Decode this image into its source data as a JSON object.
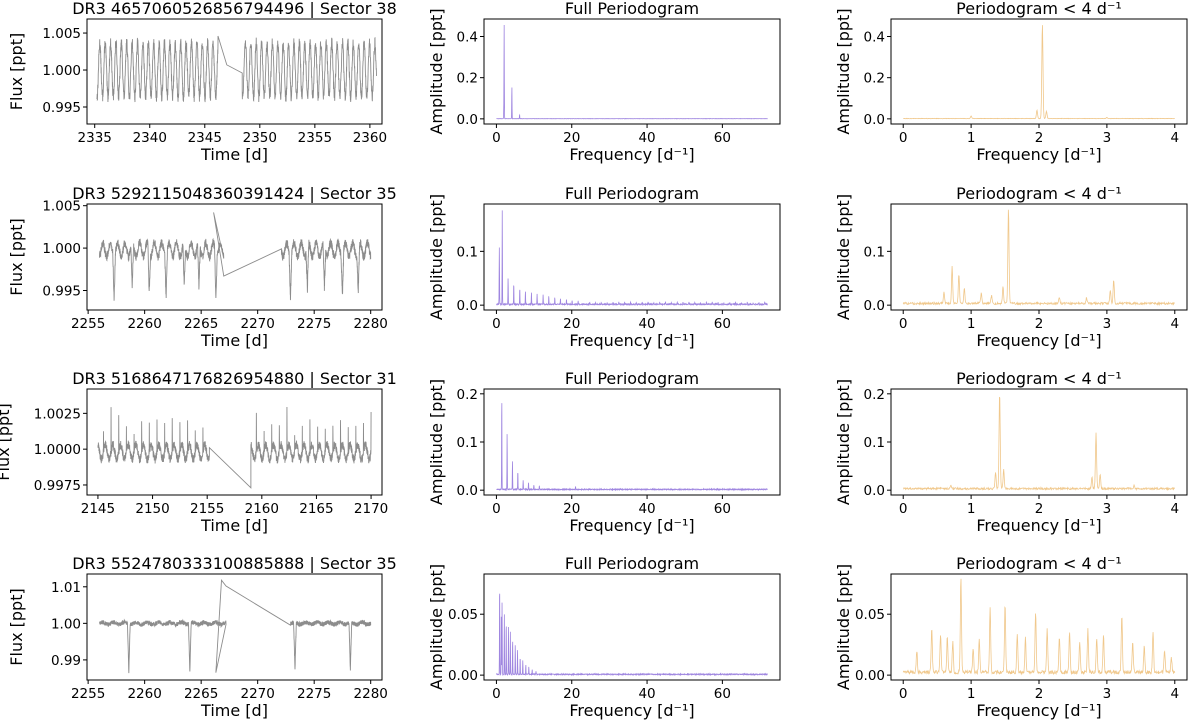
{
  "figure": {
    "rows": [
      {
        "lc_title": "DR3 4657060526856794496 | Sector 38",
        "full_title": "Full Periodogram",
        "zoom_title": "Periodogram < 4 d⁻¹"
      },
      {
        "lc_title": "DR3 5292115048360391424 | Sector 35",
        "full_title": "Full Periodogram",
        "zoom_title": "Periodogram < 4 d⁻¹"
      },
      {
        "lc_title": "DR3 5168647176826954880 | Sector 31",
        "full_title": "Full Periodogram",
        "zoom_title": "Periodogram < 4 d⁻¹"
      },
      {
        "lc_title": "DR3 5524780333100885888 | Sector 35",
        "full_title": "Full Periodogram",
        "zoom_title": "Periodogram < 4 d⁻¹"
      }
    ],
    "lc_xlabel": "Time [d]",
    "lc_ylabel": "Flux [ppt]",
    "pg_xlabel": "Frequency [d⁻¹]",
    "pg_ylabel": "Amplitude [ppt]"
  },
  "colors": {
    "light_curve": "#8c8c8c",
    "full_periodogram": "#9f86e0",
    "zoom_periodogram": "#f0c88c",
    "axes": "#000000"
  },
  "chart_data": [
    {
      "type": "line",
      "panel": "light curve",
      "row": 1,
      "title": "DR3 4657060526856794496 | Sector 38",
      "xlabel": "Time [d]",
      "ylabel": "Flux [ppt]",
      "xlim": [
        2334.3,
        2361.1
      ],
      "ylim": [
        0.9927,
        1.0069
      ],
      "xticks": [
        2335,
        2340,
        2345,
        2350,
        2355,
        2360
      ],
      "yticks": [
        0.995,
        1.0,
        1.005
      ],
      "ytick_labels": [
        "0.995",
        "1.000",
        "1.005"
      ],
      "segments": [
        [
          2335.2,
          2346.2
        ],
        [
          2348.4,
          2360.6
        ]
      ],
      "baseline": 1.0,
      "amplitude": 0.0036,
      "noise": 0.0008,
      "period_d": 0.49,
      "dip_depth": 0.0,
      "dip_times": [],
      "gap_points": [
        [
          2346.2,
          1.0046
        ],
        [
          2347.0,
          1.0007
        ],
        [
          2348.4,
          0.9996
        ]
      ]
    },
    {
      "type": "line",
      "panel": "full periodogram",
      "row": 1,
      "title": "Full Periodogram",
      "xlabel": "Frequency [d⁻¹]",
      "ylabel": "Amplitude [ppt]",
      "xlim": [
        -3.3,
        75.3
      ],
      "ylim": [
        -0.025,
        0.485
      ],
      "xticks": [
        0,
        20,
        40,
        60
      ],
      "yticks": [
        0.0,
        0.2,
        0.4
      ],
      "ytick_labels": [
        "0.0",
        "0.2",
        "0.4"
      ],
      "x_max": 72,
      "peaks": [
        [
          2.05,
          0.46
        ],
        [
          4.1,
          0.16
        ],
        [
          1.95,
          0.04
        ],
        [
          6.15,
          0.02
        ]
      ],
      "floor": 0.001
    },
    {
      "type": "line",
      "panel": "periodogram < 4",
      "row": 1,
      "title": "Periodogram < 4 d⁻¹",
      "xlabel": "Frequency [d⁻¹]",
      "ylabel": "Amplitude [ppt]",
      "xlim": [
        -0.18,
        4.18
      ],
      "ylim": [
        -0.025,
        0.485
      ],
      "xticks": [
        0,
        1,
        2,
        3,
        4
      ],
      "yticks": [
        0.0,
        0.2,
        0.4
      ],
      "ytick_labels": [
        "0.0",
        "0.2",
        "0.4"
      ],
      "x_max": 4,
      "peaks": [
        [
          2.05,
          0.46
        ],
        [
          1.97,
          0.04
        ],
        [
          2.11,
          0.035
        ],
        [
          1.0,
          0.012
        ],
        [
          3.0,
          0.006
        ]
      ],
      "floor": 0.002
    },
    {
      "type": "line",
      "panel": "light curve",
      "row": 2,
      "title": "DR3 5292115048360391424 | Sector 35",
      "xlabel": "Time [d]",
      "ylabel": "Flux [ppt]",
      "xlim": [
        2254.9,
        2281.0
      ],
      "ylim": [
        0.9927,
        1.0052
      ],
      "xticks": [
        2255,
        2260,
        2265,
        2270,
        2275,
        2280
      ],
      "yticks": [
        0.995,
        1.0,
        1.005
      ],
      "ytick_labels": [
        "0.995",
        "1.000",
        "1.005"
      ],
      "segments": [
        [
          2256.0,
          2267.0
        ],
        [
          2272.1,
          2280.0
        ]
      ],
      "baseline": 0.9998,
      "amplitude": 0.0008,
      "noise": 0.0005,
      "period_d": 0.65,
      "dip_depth": 0.005,
      "dip_times": [
        2257.3,
        2258.9,
        2260.4,
        2261.9,
        2263.5,
        2264.8,
        2266.3,
        2272.9,
        2274.4,
        2275.9,
        2277.5,
        2278.9
      ],
      "gap_points": [
        [
          2266.1,
          1.0042
        ],
        [
          2267.0,
          0.9967
        ],
        [
          2272.1,
          0.9999
        ]
      ]
    },
    {
      "type": "line",
      "panel": "full periodogram",
      "row": 2,
      "title": "Full Periodogram",
      "xlabel": "Frequency [d⁻¹]",
      "ylabel": "Amplitude [ppt]",
      "xlim": [
        -3.3,
        75.3
      ],
      "ylim": [
        -0.009,
        0.188
      ],
      "xticks": [
        0,
        20,
        40,
        60
      ],
      "yticks": [
        0.0,
        0.1
      ],
      "ytick_labels": [
        "0.0",
        "0.1"
      ],
      "x_max": 72,
      "peaks": [
        [
          1.55,
          0.178
        ],
        [
          0.75,
          0.07
        ],
        [
          0.8,
          0.055
        ],
        [
          3.1,
          0.05
        ],
        [
          4.6,
          0.04
        ],
        [
          6.2,
          0.03
        ],
        [
          7.7,
          0.025
        ],
        [
          9.3,
          0.022
        ],
        [
          10.8,
          0.02
        ],
        [
          12.4,
          0.018
        ],
        [
          13.9,
          0.016
        ],
        [
          15.5,
          0.013
        ],
        [
          17.0,
          0.011
        ],
        [
          18.6,
          0.009
        ],
        [
          20.1,
          0.007
        ],
        [
          21.7,
          0.006
        ]
      ],
      "comb": {
        "spacing": 1.55,
        "start": 23.2,
        "end": 71.5,
        "height": 0.004
      },
      "floor": 0.002
    },
    {
      "type": "line",
      "panel": "periodogram < 4",
      "row": 2,
      "title": "Periodogram < 4 d⁻¹",
      "xlabel": "Frequency [d⁻¹]",
      "ylabel": "Amplitude [ppt]",
      "xlim": [
        -0.18,
        4.18
      ],
      "ylim": [
        -0.009,
        0.188
      ],
      "xticks": [
        0,
        1,
        2,
        3,
        4
      ],
      "yticks": [
        0.0,
        0.1
      ],
      "ytick_labels": [
        "0.0",
        "0.1"
      ],
      "x_max": 4,
      "peaks": [
        [
          1.55,
          0.178
        ],
        [
          0.72,
          0.068
        ],
        [
          0.82,
          0.055
        ],
        [
          0.9,
          0.03
        ],
        [
          3.1,
          0.045
        ],
        [
          3.05,
          0.025
        ],
        [
          1.47,
          0.03
        ],
        [
          0.6,
          0.02
        ],
        [
          1.15,
          0.02
        ],
        [
          1.3,
          0.015
        ],
        [
          2.3,
          0.012
        ],
        [
          2.7,
          0.01
        ]
      ],
      "floor": 0.004
    },
    {
      "type": "line",
      "panel": "light curve",
      "row": 3,
      "title": "DR3 5168647176826954880 | Sector 31",
      "xlabel": "Time [d]",
      "ylabel": "Flux [ppt]",
      "xlim": [
        2144.0,
        2171.0
      ],
      "ylim": [
        0.9968,
        1.0042
      ],
      "xticks": [
        2145,
        2150,
        2155,
        2160,
        2165,
        2170
      ],
      "yticks": [
        0.9975,
        1.0,
        1.0025
      ],
      "ytick_labels": [
        "0.9975",
        "1.0000",
        "1.0025"
      ],
      "segments": [
        [
          2145.0,
          2155.2
        ],
        [
          2159.0,
          2170.0
        ]
      ],
      "baseline": 0.9998,
      "amplitude": 0.0005,
      "noise": 0.0003,
      "period_d": 0.7,
      "dip_depth": 0.0,
      "dip_times": [],
      "spike_period": 0.7,
      "spike_height": 0.0032,
      "gap_points": [
        [
          2155.2,
          1.0001
        ],
        [
          2159.0,
          0.9973
        ]
      ]
    },
    {
      "type": "line",
      "panel": "full periodogram",
      "row": 3,
      "title": "Full Periodogram",
      "xlabel": "Frequency [d⁻¹]",
      "ylabel": "Amplitude [ppt]",
      "xlim": [
        -3.3,
        75.3
      ],
      "ylim": [
        -0.01,
        0.21
      ],
      "xticks": [
        0,
        20,
        40,
        60
      ],
      "yticks": [
        0.0,
        0.1,
        0.2
      ],
      "ytick_labels": [
        "0.0",
        "0.1",
        "0.2"
      ],
      "x_max": 72,
      "peaks": [
        [
          1.42,
          0.2
        ],
        [
          2.84,
          0.12
        ],
        [
          4.26,
          0.06
        ],
        [
          5.68,
          0.04
        ],
        [
          7.1,
          0.02
        ],
        [
          8.52,
          0.015
        ],
        [
          9.94,
          0.01
        ],
        [
          11.4,
          0.008
        ],
        [
          21.0,
          0.006
        ]
      ],
      "floor": 0.002
    },
    {
      "type": "line",
      "panel": "periodogram < 4",
      "row": 3,
      "title": "Periodogram < 4 d⁻¹",
      "xlabel": "Frequency [d⁻¹]",
      "ylabel": "Amplitude [ppt]",
      "xlim": [
        -0.18,
        4.18
      ],
      "ylim": [
        -0.01,
        0.21
      ],
      "xticks": [
        0,
        1,
        2,
        3,
        4
      ],
      "yticks": [
        0.0,
        0.1,
        0.2
      ],
      "ytick_labels": [
        "0.0",
        "0.1",
        "0.2"
      ],
      "x_max": 4,
      "peaks": [
        [
          1.42,
          0.2
        ],
        [
          1.48,
          0.04
        ],
        [
          1.36,
          0.035
        ],
        [
          2.84,
          0.115
        ],
        [
          2.9,
          0.03
        ],
        [
          2.78,
          0.025
        ],
        [
          0.7,
          0.008
        ],
        [
          3.4,
          0.006
        ]
      ],
      "floor": 0.004
    },
    {
      "type": "line",
      "panel": "light curve",
      "row": 4,
      "title": "DR3 5524780333100885888 | Sector 35",
      "xlabel": "Time [d]",
      "ylabel": "Flux [ppt]",
      "xlim": [
        2254.9,
        2281.0
      ],
      "ylim": [
        0.9845,
        1.0135
      ],
      "xticks": [
        2255,
        2260,
        2265,
        2270,
        2275,
        2280
      ],
      "yticks": [
        0.99,
        1.0,
        1.01
      ],
      "ytick_labels": [
        "0.99",
        "1.00",
        "1.01"
      ],
      "segments": [
        [
          2256.0,
          2267.2
        ],
        [
          2272.9,
          2280.0
        ]
      ],
      "baseline": 1.0,
      "amplitude": 0.0003,
      "noise": 0.0006,
      "period_d": 1.0,
      "dip_depth": 0.013,
      "dip_times": [
        2258.6,
        2264.0,
        2273.3,
        2278.2
      ],
      "gap_points": [
        [
          2266.3,
          0.9865
        ],
        [
          2266.8,
          1.0118
        ],
        [
          2267.2,
          1.0102
        ],
        [
          2272.9,
          0.9995
        ]
      ]
    },
    {
      "type": "line",
      "panel": "full periodogram",
      "row": 4,
      "title": "Full Periodogram",
      "xlabel": "Frequency [d⁻¹]",
      "ylabel": "Amplitude [ppt]",
      "xlim": [
        -3.3,
        75.3
      ],
      "ylim": [
        -0.004,
        0.083
      ],
      "xticks": [
        0,
        20,
        40,
        60
      ],
      "yticks": [
        0.0,
        0.05
      ],
      "ytick_labels": [
        "0.00",
        "0.05"
      ],
      "x_max": 72,
      "peaks": [
        [
          0.85,
          0.078
        ],
        [
          1.5,
          0.06
        ],
        [
          1.3,
          0.05
        ],
        [
          2.1,
          0.05
        ],
        [
          2.6,
          0.045
        ],
        [
          3.2,
          0.04
        ],
        [
          3.7,
          0.035
        ],
        [
          4.3,
          0.03
        ],
        [
          5.0,
          0.025
        ],
        [
          5.6,
          0.02
        ],
        [
          6.3,
          0.015
        ],
        [
          7.0,
          0.012
        ],
        [
          7.8,
          0.008
        ],
        [
          8.6,
          0.006
        ],
        [
          9.5,
          0.004
        ],
        [
          10.5,
          0.003
        ]
      ],
      "floor": 0.0008
    },
    {
      "type": "line",
      "panel": "periodogram < 4",
      "row": 4,
      "title": "Periodogram < 4 d⁻¹",
      "xlabel": "Frequency [d⁻¹]",
      "ylabel": "Amplitude [ppt]",
      "xlim": [
        -0.18,
        4.18
      ],
      "ylim": [
        -0.004,
        0.083
      ],
      "xticks": [
        0,
        1,
        2,
        3,
        4
      ],
      "yticks": [
        0.0,
        0.05
      ],
      "ytick_labels": [
        "0.00",
        "0.05"
      ],
      "x_max": 4,
      "peaks": [
        [
          0.85,
          0.078
        ],
        [
          0.2,
          0.018
        ],
        [
          0.42,
          0.035
        ],
        [
          0.55,
          0.032
        ],
        [
          0.65,
          0.03
        ],
        [
          0.73,
          0.025
        ],
        [
          1.03,
          0.02
        ],
        [
          1.12,
          0.028
        ],
        [
          1.28,
          0.052
        ],
        [
          1.5,
          0.055
        ],
        [
          1.68,
          0.032
        ],
        [
          1.8,
          0.028
        ],
        [
          1.95,
          0.05
        ],
        [
          2.12,
          0.035
        ],
        [
          2.3,
          0.03
        ],
        [
          2.45,
          0.032
        ],
        [
          2.6,
          0.025
        ],
        [
          2.72,
          0.035
        ],
        [
          2.85,
          0.028
        ],
        [
          2.95,
          0.03
        ],
        [
          3.22,
          0.048
        ],
        [
          3.38,
          0.025
        ],
        [
          3.55,
          0.022
        ],
        [
          3.68,
          0.033
        ],
        [
          3.85,
          0.018
        ],
        [
          3.95,
          0.012
        ]
      ],
      "floor": 0.003
    }
  ]
}
